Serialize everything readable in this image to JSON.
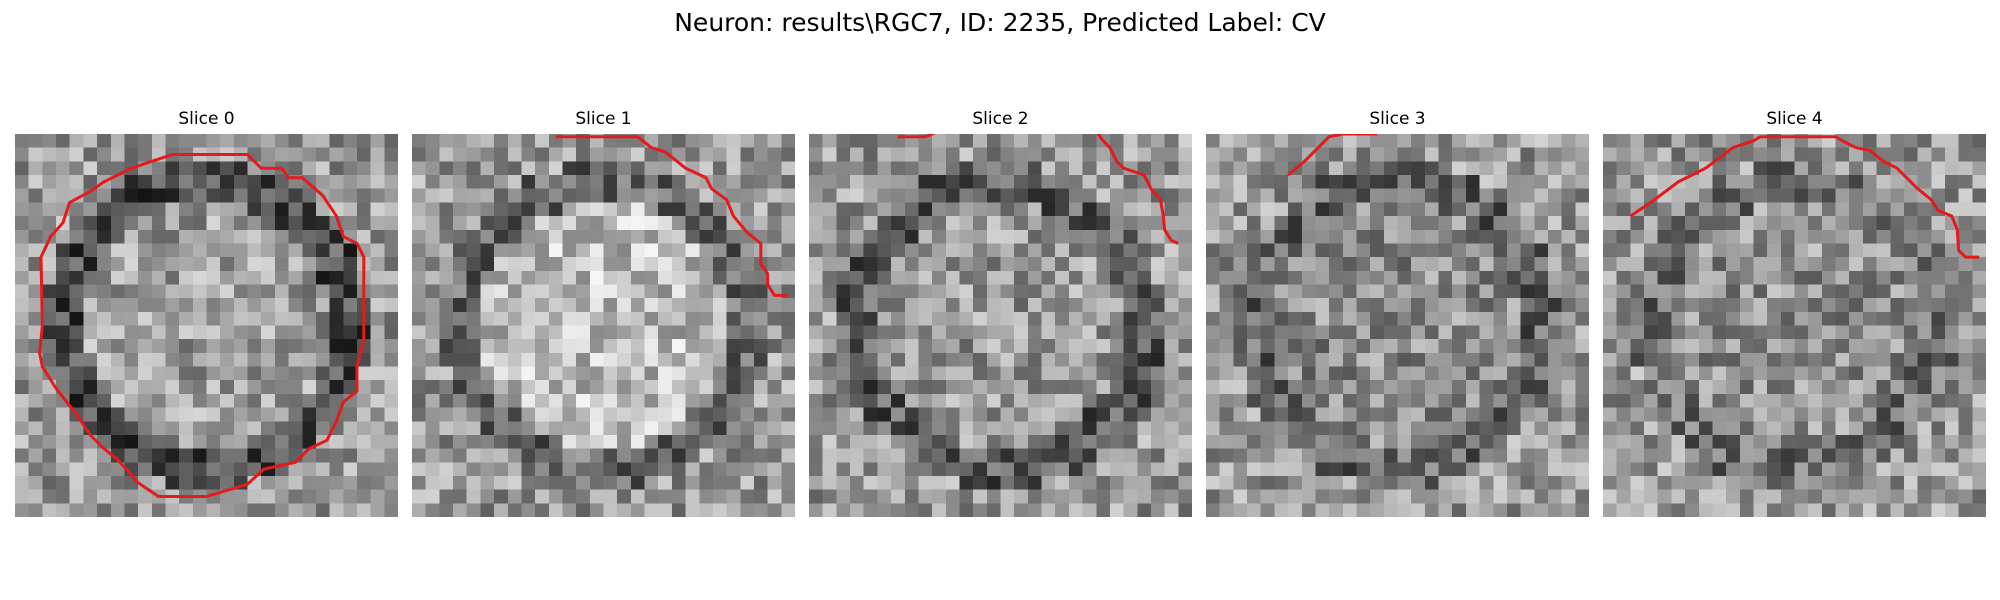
{
  "figure": {
    "title": "Neuron: results\\RGC7, ID: 2235, Predicted Label: CV",
    "contour_color": "#e41a1c"
  },
  "panels": [
    {
      "title": "Slice 0",
      "seed": 11,
      "center_bright": 0.62,
      "ring_dark": 0.3,
      "contour": [
        [
          13.5,
          1.5
        ],
        [
          17,
          1.5
        ],
        [
          18,
          2.5
        ],
        [
          19.5,
          2.5
        ],
        [
          20,
          3.2
        ],
        [
          21,
          3.2
        ],
        [
          22.5,
          4.5
        ],
        [
          23.5,
          6
        ],
        [
          24,
          7.5
        ],
        [
          25,
          8
        ],
        [
          25.5,
          9
        ],
        [
          25.5,
          15
        ],
        [
          25,
          17
        ],
        [
          25,
          18.8
        ],
        [
          24,
          19.6
        ],
        [
          23.5,
          21
        ],
        [
          22.8,
          22.4
        ],
        [
          21.5,
          23
        ],
        [
          20.5,
          24
        ],
        [
          18.2,
          24.5
        ],
        [
          17,
          25.6
        ],
        [
          14,
          26.5
        ],
        [
          10.5,
          26.5
        ],
        [
          9,
          25.5
        ],
        [
          7.5,
          23.8
        ],
        [
          6.5,
          23
        ],
        [
          5.5,
          22
        ],
        [
          4.5,
          20.5
        ],
        [
          3,
          18.6
        ],
        [
          2,
          17
        ],
        [
          1.8,
          16
        ],
        [
          2,
          14
        ],
        [
          1.9,
          9
        ],
        [
          2.6,
          7.5
        ],
        [
          3.5,
          6.5
        ],
        [
          4,
          5
        ],
        [
          5.5,
          4.2
        ],
        [
          6.5,
          3.5
        ],
        [
          7.5,
          3
        ],
        [
          8.5,
          2.5
        ],
        [
          10,
          2
        ],
        [
          11.5,
          1.5
        ],
        [
          13.5,
          1.5
        ]
      ]
    },
    {
      "title": "Slice 1",
      "seed": 23,
      "center_bright": 0.74,
      "ring_dark": 0.42,
      "contour": [
        [
          10.5,
          0.2
        ],
        [
          16.5,
          0.2
        ],
        [
          17.5,
          1
        ],
        [
          18.5,
          1.3
        ],
        [
          20,
          2.5
        ],
        [
          21.5,
          3.2
        ],
        [
          21.9,
          4
        ],
        [
          23,
          4.8
        ],
        [
          23.5,
          6
        ],
        [
          24.5,
          7.2
        ],
        [
          25.5,
          8
        ],
        [
          25.5,
          9.5
        ],
        [
          26,
          10.2
        ],
        [
          26,
          11
        ],
        [
          26.5,
          11.8
        ],
        [
          27.5,
          11.8
        ]
      ]
    },
    {
      "title": "Slice 2",
      "seed": 37,
      "center_bright": 0.6,
      "ring_dark": 0.36,
      "contour": [
        [
          6.5,
          0.2
        ],
        [
          8.5,
          0.2
        ],
        [
          9.5,
          -0.2
        ],
        [
          21,
          -0.2
        ],
        [
          21.5,
          0.5
        ],
        [
          22,
          1
        ],
        [
          22.5,
          2
        ],
        [
          23,
          2.5
        ],
        [
          24.5,
          3
        ],
        [
          25,
          4
        ],
        [
          25.7,
          4.8
        ],
        [
          25.9,
          6
        ],
        [
          26,
          7
        ],
        [
          26.5,
          7.8
        ],
        [
          27,
          8
        ]
      ]
    },
    {
      "title": "Slice 3",
      "seed": 51,
      "center_bright": 0.55,
      "ring_dark": 0.4,
      "contour": [
        [
          6,
          3
        ],
        [
          7.2,
          2
        ],
        [
          8.2,
          1
        ],
        [
          9,
          0.2
        ],
        [
          10,
          0
        ],
        [
          12.5,
          0
        ]
      ]
    },
    {
      "title": "Slice 4",
      "seed": 67,
      "center_bright": 0.57,
      "ring_dark": 0.44,
      "contour": [
        [
          2,
          6
        ],
        [
          3.5,
          5
        ],
        [
          5.5,
          3.5
        ],
        [
          7.5,
          2.5
        ],
        [
          9.5,
          1
        ],
        [
          11,
          0.5
        ],
        [
          11.5,
          0.2
        ],
        [
          17,
          0.2
        ],
        [
          17.5,
          0.5
        ],
        [
          18.5,
          1
        ],
        [
          19.5,
          1.2
        ],
        [
          20.5,
          2
        ],
        [
          21.5,
          2.5
        ],
        [
          22,
          3
        ],
        [
          23,
          4
        ],
        [
          24,
          4.8
        ],
        [
          24.5,
          5.6
        ],
        [
          25.5,
          6
        ],
        [
          25.9,
          7
        ],
        [
          26,
          8.5
        ],
        [
          26.5,
          9
        ],
        [
          27.5,
          9
        ]
      ]
    }
  ]
}
